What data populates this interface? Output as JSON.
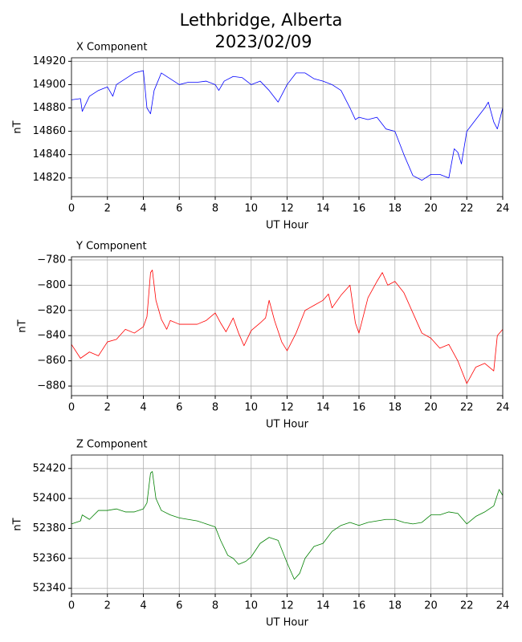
{
  "title": [
    "Lethbridge, Alberta",
    "2023/02/09"
  ],
  "chart_data": [
    {
      "type": "line",
      "title": "X Component",
      "xlabel": "UT Hour",
      "ylabel": "nT",
      "color": "#0000ff",
      "grid": true,
      "xlim": [
        0,
        24
      ],
      "xticks": [
        0,
        2,
        4,
        6,
        8,
        10,
        12,
        14,
        16,
        18,
        20,
        22,
        24
      ],
      "ylim": [
        14804,
        14923
      ],
      "yticks": [
        14820,
        14840,
        14860,
        14880,
        14900,
        14920
      ],
      "x": [
        0,
        0.5,
        0.6,
        1,
        1.5,
        2,
        2.3,
        2.5,
        3,
        3.5,
        4,
        4.2,
        4.4,
        4.6,
        5,
        5.5,
        6,
        6.5,
        7,
        7.5,
        8,
        8.2,
        8.5,
        9,
        9.5,
        10,
        10.5,
        11,
        11.5,
        12,
        12.5,
        13,
        13.5,
        14,
        14.5,
        15,
        15.5,
        15.8,
        16,
        16.5,
        17,
        17.5,
        18,
        18.5,
        19,
        19.5,
        20,
        20.5,
        21,
        21.3,
        21.5,
        21.7,
        22,
        22.5,
        23,
        23.2,
        23.5,
        23.7,
        24
      ],
      "values": [
        14887,
        14888,
        14877,
        14890,
        14895,
        14898,
        14890,
        14900,
        14905,
        14910,
        14912,
        14880,
        14875,
        14895,
        14910,
        14905,
        14900,
        14902,
        14902,
        14903,
        14900,
        14895,
        14903,
        14907,
        14906,
        14900,
        14903,
        14895,
        14885,
        14900,
        14910,
        14910,
        14905,
        14903,
        14900,
        14895,
        14880,
        14870,
        14872,
        14870,
        14872,
        14862,
        14860,
        14840,
        14822,
        14818,
        14823,
        14823,
        14820,
        14845,
        14842,
        14832,
        14860,
        14870,
        14880,
        14885,
        14868,
        14862,
        14880
      ]
    },
    {
      "type": "line",
      "title": "Y Component",
      "xlabel": "UT Hour",
      "ylabel": "nT",
      "color": "#ff0000",
      "grid": true,
      "xlim": [
        0,
        24
      ],
      "xticks": [
        0,
        2,
        4,
        6,
        8,
        10,
        12,
        14,
        16,
        18,
        20,
        22,
        24
      ],
      "ylim": [
        -887.6,
        -777.5
      ],
      "yticks": [
        {
          "value": -880,
          "label": "−880"
        },
        {
          "value": -860,
          "label": "−860"
        },
        {
          "value": -840,
          "label": "−840"
        },
        {
          "value": -820,
          "label": "−820"
        },
        {
          "value": -800,
          "label": "−800"
        },
        {
          "value": -780,
          "label": "−780"
        }
      ],
      "x": [
        0,
        0.5,
        1,
        1.5,
        2,
        2.5,
        3,
        3.5,
        4,
        4.2,
        4.4,
        4.5,
        4.7,
        5,
        5.3,
        5.5,
        6,
        6.5,
        7,
        7.5,
        8,
        8.3,
        8.6,
        9,
        9.3,
        9.6,
        10,
        10.5,
        10.8,
        11,
        11.3,
        11.7,
        12,
        12.5,
        13,
        13.5,
        14,
        14.3,
        14.5,
        15,
        15.5,
        15.8,
        16,
        16.5,
        17,
        17.3,
        17.6,
        18,
        18.5,
        19,
        19.5,
        20,
        20.5,
        21,
        21.5,
        22,
        22.5,
        23,
        23.5,
        23.7,
        24
      ],
      "values": [
        -847,
        -858,
        -853,
        -856,
        -845,
        -843,
        -835,
        -838,
        -833,
        -825,
        -790,
        -788,
        -812,
        -827,
        -835,
        -828,
        -831,
        -831,
        -831,
        -828,
        -822,
        -830,
        -837,
        -826,
        -838,
        -848,
        -836,
        -830,
        -826,
        -812,
        -828,
        -845,
        -852,
        -838,
        -820,
        -816,
        -812,
        -807,
        -818,
        -808,
        -800,
        -830,
        -838,
        -810,
        -797,
        -790,
        -800,
        -797,
        -806,
        -822,
        -838,
        -842,
        -850,
        -847,
        -860,
        -878,
        -865,
        -862,
        -868,
        -840,
        -835
      ]
    },
    {
      "type": "line",
      "title": "Z Component",
      "xlabel": "UT Hour",
      "ylabel": "nT",
      "color": "#008000",
      "grid": true,
      "xlim": [
        0,
        24
      ],
      "xticks": [
        0,
        2,
        4,
        6,
        8,
        10,
        12,
        14,
        16,
        18,
        20,
        22,
        24
      ],
      "ylim": [
        52336.3,
        52429
      ],
      "yticks": [
        52340,
        52360,
        52380,
        52400,
        52420
      ],
      "x": [
        0,
        0.5,
        0.6,
        1,
        1.5,
        2,
        2.5,
        3,
        3.5,
        4,
        4.2,
        4.4,
        4.5,
        4.7,
        5,
        5.5,
        6,
        6.5,
        7,
        7.5,
        8,
        8.3,
        8.7,
        9,
        9.3,
        9.7,
        10,
        10.5,
        11,
        11.5,
        12,
        12.4,
        12.7,
        13,
        13.5,
        14,
        14.5,
        15,
        15.5,
        16,
        16.5,
        17,
        17.5,
        18,
        18.5,
        19,
        19.5,
        20,
        20.5,
        21,
        21.5,
        22,
        22.5,
        23,
        23.5,
        23.8,
        24
      ],
      "values": [
        52383,
        52385,
        52389,
        52386,
        52392,
        52392,
        52393,
        52391,
        52391,
        52393,
        52397,
        52417,
        52418,
        52400,
        52392,
        52389,
        52387,
        52386,
        52385,
        52383,
        52381,
        52372,
        52362,
        52360,
        52356,
        52358,
        52361,
        52370,
        52374,
        52372,
        52357,
        52346,
        52350,
        52360,
        52368,
        52370,
        52378,
        52382,
        52384,
        52382,
        52384,
        52385,
        52386,
        52386,
        52384,
        52383,
        52384,
        52389,
        52389,
        52391,
        52390,
        52383,
        52388,
        52391,
        52395,
        52406,
        52402
      ]
    }
  ]
}
